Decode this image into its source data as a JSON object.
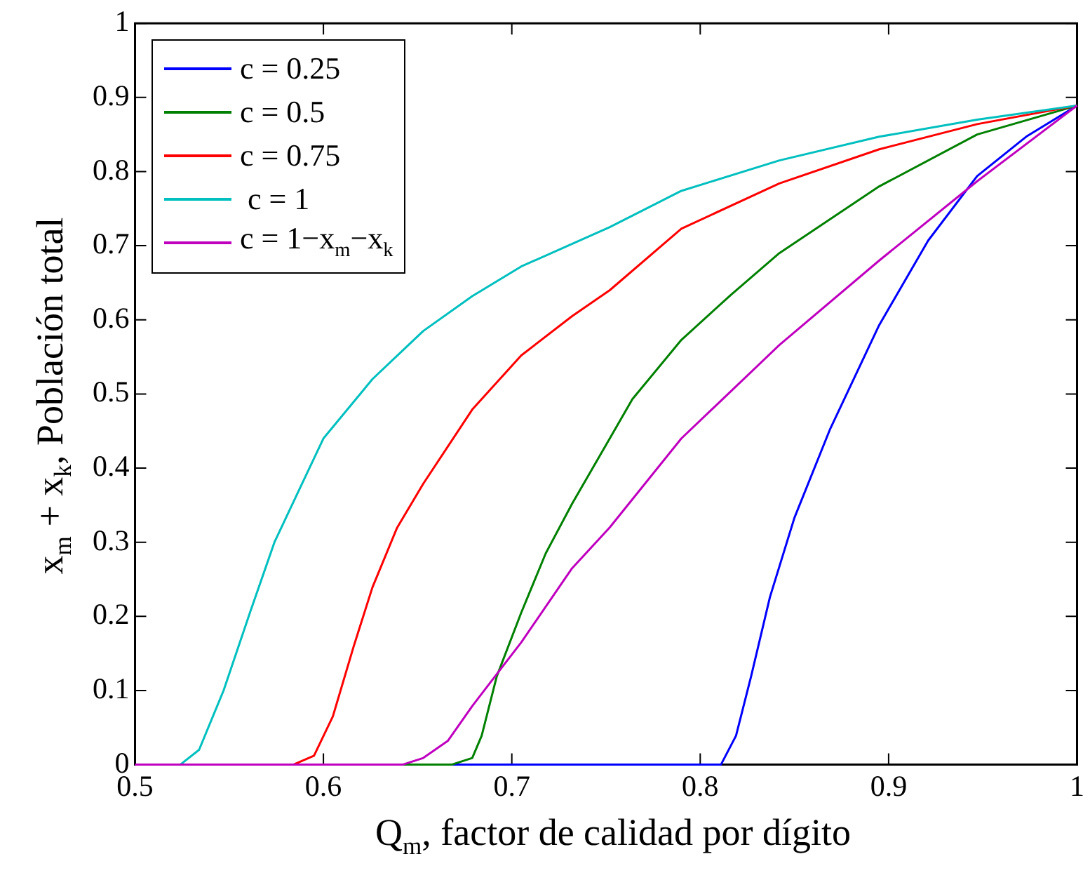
{
  "chart_data": {
    "type": "line",
    "xlabel": "Q$_{m}$, factor de calidad por dígito",
    "ylabel": "x$_{m}$ + x$_{k}$, Población total",
    "xlim": [
      0.5,
      1
    ],
    "xticks": [
      0.5,
      0.6,
      0.7,
      0.8,
      0.9,
      1
    ],
    "ylim": [
      0,
      1
    ],
    "yticks": [
      0,
      0.1,
      0.2,
      0.3,
      0.4,
      0.5,
      0.6,
      0.7,
      0.8,
      0.9,
      1
    ],
    "grid": false,
    "legend": "top left",
    "marker": "none",
    "line_style": "solid",
    "series": [
      {
        "name": "c = 0.25",
        "color": "#0000ff",
        "x": [
          0.668,
          0.811,
          0.819,
          0.827,
          0.837,
          0.85,
          0.869,
          0.895,
          0.921,
          0.947,
          0.973,
          1.0
        ],
        "values": [
          0,
          0,
          0.039,
          0.119,
          0.226,
          0.333,
          0.453,
          0.593,
          0.707,
          0.794,
          0.847,
          0.889
        ]
      },
      {
        "name": "c = 0.5",
        "color": "#008000",
        "x": [
          0.642,
          0.668,
          0.679,
          0.684,
          0.692,
          0.705,
          0.718,
          0.732,
          0.752,
          0.764,
          0.79,
          0.816,
          0.842,
          0.895,
          0.947,
          1.0
        ],
        "values": [
          0,
          0,
          0.009,
          0.039,
          0.119,
          0.205,
          0.285,
          0.352,
          0.44,
          0.493,
          0.573,
          0.633,
          0.69,
          0.78,
          0.85,
          0.889
        ]
      },
      {
        "name": "c = 0.75",
        "color": "#ff0000",
        "x": [
          0.584,
          0.595,
          0.605,
          0.616,
          0.626,
          0.639,
          0.653,
          0.679,
          0.705,
          0.732,
          0.752,
          0.79,
          0.842,
          0.895,
          0.947,
          1.0
        ],
        "values": [
          0,
          0.012,
          0.065,
          0.159,
          0.239,
          0.319,
          0.379,
          0.479,
          0.552,
          0.605,
          0.64,
          0.723,
          0.784,
          0.83,
          0.864,
          0.889
        ]
      },
      {
        "name": " c = 1",
        "color": "#00bfbf",
        "x": [
          0.524,
          0.534,
          0.547,
          0.561,
          0.574,
          0.587,
          0.6,
          0.626,
          0.653,
          0.679,
          0.705,
          0.752,
          0.79,
          0.842,
          0.895,
          0.947,
          1.0
        ],
        "values": [
          0,
          0.02,
          0.1,
          0.205,
          0.3,
          0.37,
          0.44,
          0.52,
          0.585,
          0.632,
          0.672,
          0.725,
          0.774,
          0.815,
          0.847,
          0.87,
          0.889
        ]
      },
      {
        "name": "c = 1−x$_{m}$−x$_{k}$",
        "color": "#bf00bf",
        "x": [
          0.5,
          0.642,
          0.653,
          0.666,
          0.679,
          0.695,
          0.705,
          0.732,
          0.752,
          0.79,
          0.842,
          0.895,
          0.947,
          1.0
        ],
        "values": [
          0,
          0,
          0.009,
          0.032,
          0.079,
          0.132,
          0.165,
          0.265,
          0.32,
          0.44,
          0.566,
          0.68,
          0.787,
          0.889
        ]
      }
    ]
  }
}
